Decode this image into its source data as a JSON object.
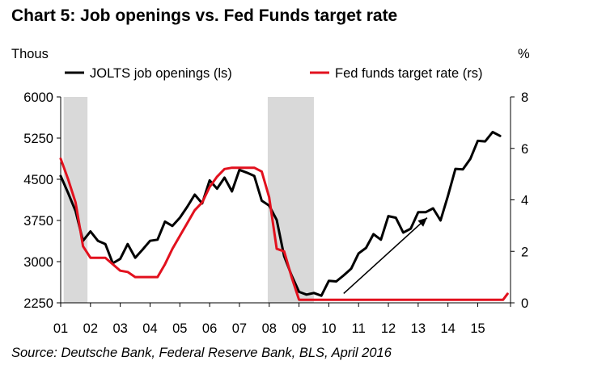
{
  "chart_data": {
    "type": "line",
    "title": "Chart 5:  Job openings vs. Fed Funds target rate",
    "source": "Source: Deutsche Bank, Federal Reserve Bank, BLS, April 2016",
    "left_axis": {
      "unit_label": "Thous",
      "ylim": [
        2250,
        6000
      ],
      "ticks": [
        "6000",
        "5250",
        "4500",
        "3750",
        "3000",
        "2250"
      ],
      "tick_values": [
        6000,
        5250,
        4500,
        3750,
        3000,
        2250
      ]
    },
    "right_axis": {
      "unit_label": "%",
      "ylim": [
        0,
        8
      ],
      "ticks": [
        "8",
        "6",
        "4",
        "2",
        "0"
      ],
      "tick_values": [
        8,
        6,
        4,
        2,
        0
      ]
    },
    "x_axis": {
      "xlim": [
        2001,
        2016.1
      ],
      "ticks": [
        "01",
        "02",
        "03",
        "04",
        "05",
        "06",
        "07",
        "08",
        "09",
        "10",
        "11",
        "12",
        "13",
        "14",
        "15"
      ],
      "tick_values": [
        2001,
        2002,
        2003,
        2004,
        2005,
        2006,
        2007,
        2008,
        2009,
        2010,
        2011,
        2012,
        2013,
        2014,
        2015
      ]
    },
    "recessions": [
      {
        "start": 2001.1,
        "end": 2001.9
      },
      {
        "start": 2007.95,
        "end": 2009.5
      }
    ],
    "legend_position": "top",
    "series": [
      {
        "name": "JOLTS job openings (ls)",
        "axis": "left",
        "color": "#000000",
        "x": [
          2001.0,
          2001.25,
          2001.5,
          2001.75,
          2002.0,
          2002.25,
          2002.5,
          2002.75,
          2003.0,
          2003.25,
          2003.5,
          2003.75,
          2004.0,
          2004.25,
          2004.5,
          2004.75,
          2005.0,
          2005.25,
          2005.5,
          2005.75,
          2006.0,
          2006.25,
          2006.5,
          2006.75,
          2007.0,
          2007.25,
          2007.5,
          2007.75,
          2008.0,
          2008.25,
          2008.5,
          2008.75,
          2009.0,
          2009.25,
          2009.5,
          2009.75,
          2010.0,
          2010.25,
          2010.5,
          2010.75,
          2011.0,
          2011.25,
          2011.5,
          2011.75,
          2012.0,
          2012.25,
          2012.5,
          2012.75,
          2013.0,
          2013.25,
          2013.5,
          2013.75,
          2014.0,
          2014.25,
          2014.5,
          2014.75,
          2015.0,
          2015.25,
          2015.5,
          2015.75
        ],
        "values": [
          4560,
          4250,
          3920,
          3380,
          3550,
          3380,
          3320,
          2970,
          3050,
          3320,
          3070,
          3220,
          3380,
          3400,
          3730,
          3650,
          3800,
          4000,
          4220,
          4060,
          4480,
          4330,
          4530,
          4280,
          4670,
          4620,
          4560,
          4110,
          4020,
          3760,
          3100,
          2750,
          2450,
          2400,
          2430,
          2380,
          2650,
          2640,
          2750,
          2870,
          3150,
          3250,
          3500,
          3400,
          3830,
          3800,
          3530,
          3600,
          3900,
          3900,
          3970,
          3750,
          4200,
          4690,
          4680,
          4870,
          5200,
          5190,
          5360,
          5290
        ]
      },
      {
        "name": "Fed funds target rate (rs)",
        "axis": "right",
        "color": "#e2111e",
        "x": [
          2001.0,
          2001.25,
          2001.5,
          2001.75,
          2002.0,
          2002.25,
          2002.5,
          2002.75,
          2003.0,
          2003.25,
          2003.5,
          2003.75,
          2004.0,
          2004.25,
          2004.5,
          2004.75,
          2005.0,
          2005.25,
          2005.5,
          2005.75,
          2006.0,
          2006.25,
          2006.5,
          2006.75,
          2007.0,
          2007.25,
          2007.5,
          2007.75,
          2008.0,
          2008.25,
          2008.5,
          2008.75,
          2009.0,
          2009.25,
          2009.5,
          2010.0,
          2011.0,
          2012.0,
          2013.0,
          2014.0,
          2015.0,
          2015.85,
          2016.0
        ],
        "values": [
          5.6,
          4.8,
          3.9,
          2.2,
          1.75,
          1.75,
          1.75,
          1.5,
          1.25,
          1.2,
          1.0,
          1.0,
          1.0,
          1.0,
          1.5,
          2.1,
          2.6,
          3.1,
          3.6,
          3.9,
          4.5,
          4.9,
          5.2,
          5.25,
          5.25,
          5.25,
          5.25,
          5.1,
          4.1,
          2.1,
          2.0,
          1.0,
          0.12,
          0.12,
          0.12,
          0.12,
          0.12,
          0.12,
          0.12,
          0.12,
          0.12,
          0.12,
          0.35
        ]
      }
    ],
    "annotations": [
      {
        "type": "arrow",
        "from": [
          2010.5,
          2420
        ],
        "to": [
          2013.3,
          3800
        ]
      }
    ]
  }
}
